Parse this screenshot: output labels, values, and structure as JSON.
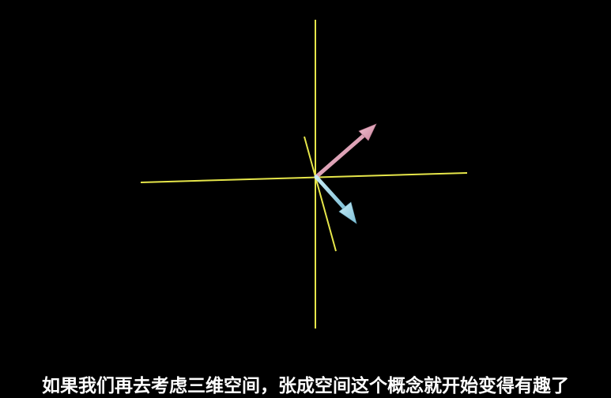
{
  "colors": {
    "background": "#000000",
    "axis": "#e6e64a",
    "vector_pink": "#e4a3b8",
    "vector_blue": "#9fd8ea",
    "subtitle_text": "#ffffff"
  },
  "scene": {
    "axes": [
      "x-axis",
      "y-axis",
      "z-axis"
    ],
    "vectors": [
      {
        "name": "pink-vector",
        "color": "vector_pink"
      },
      {
        "name": "blue-vector",
        "color": "vector_blue"
      }
    ]
  },
  "subtitle": {
    "text": "如果我们再去考虑三维空间，张成空间这个概念就开始变得有趣了"
  }
}
